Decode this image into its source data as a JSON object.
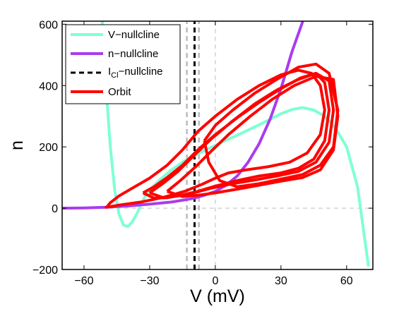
{
  "chart_data": {
    "type": "line",
    "title": "",
    "xlabel": "V (mV)",
    "ylabel": "n",
    "xlim": [
      -70,
      72
    ],
    "ylim": [
      -200,
      610
    ],
    "xticks": [
      -60,
      -30,
      0,
      30,
      60
    ],
    "yticks": [
      -200,
      0,
      200,
      400,
      600
    ],
    "xtick_labels": [
      "−60",
      "−30",
      "0",
      "30",
      "60"
    ],
    "ytick_labels": [
      "−200",
      "0",
      "200",
      "400",
      "600"
    ],
    "grid": false,
    "legend": {
      "placement": "top-left",
      "entries": [
        {
          "label": "V−nullcline",
          "color": "#7fffd4",
          "style": "solid"
        },
        {
          "label": "n−nullcline",
          "color": "#a93cf0",
          "style": "solid"
        },
        {
          "label_main": "I",
          "label_sub": "Cl",
          "label_rest": "−nullcline",
          "color": "#000000",
          "style": "dashed"
        },
        {
          "label": "Orbit",
          "color": "#ff0000",
          "style": "solid"
        }
      ]
    },
    "series": [
      {
        "name": "V−nullcline",
        "color": "#7fffd4",
        "x": [
          -52,
          -50,
          -48,
          -46,
          -44,
          -42,
          -40,
          -38,
          -36,
          -34,
          -32,
          -30,
          -25,
          -20,
          -15,
          -10,
          -5,
          0,
          5,
          10,
          15,
          20,
          25,
          30,
          35,
          40,
          45,
          50,
          55,
          60,
          65,
          70
        ],
        "y": [
          650,
          400,
          200,
          60,
          -20,
          -55,
          -60,
          -45,
          -20,
          10,
          40,
          60,
          95,
          125,
          150,
          170,
          188,
          205,
          222,
          238,
          255,
          272,
          290,
          308,
          322,
          328,
          320,
          300,
          260,
          200,
          70,
          -190
        ]
      },
      {
        "name": "n−nullcline",
        "color": "#a93cf0",
        "x": [
          -70,
          -60,
          -50,
          -40,
          -30,
          -20,
          -10,
          -5,
          0,
          5,
          10,
          15,
          20,
          25,
          30,
          35,
          40
        ],
        "y": [
          0,
          1,
          3,
          7,
          13,
          20,
          32,
          42,
          55,
          75,
          105,
          150,
          210,
          290,
          390,
          510,
          610
        ]
      },
      {
        "name": "I_Cl−nullcline",
        "color": "#000000",
        "x": [
          -9.5,
          -9.5
        ],
        "y": [
          -200,
          610
        ]
      },
      {
        "name": "I_Cl−nullcline (lower)",
        "color": "#bbbbbb",
        "x": [
          -13,
          -13
        ],
        "y": [
          -200,
          610
        ]
      },
      {
        "name": "I_Cl−nullcline (upper)",
        "color": "#bbbbbb",
        "x": [
          -7.5,
          -7.5
        ],
        "y": [
          -200,
          610
        ]
      },
      {
        "name": "Orbit",
        "color": "#ff0000",
        "loops": [
          {
            "x": [
              -50,
              -48,
              -44,
              -38,
              -30,
              -22,
              -15,
              -8,
              0,
              10,
              20,
              30,
              38,
              44,
              48,
              50,
              48,
              42,
              34,
              24,
              14,
              6,
              0,
              -6,
              -14,
              -24,
              -34,
              -44,
              -48,
              -50,
              -50
            ],
            "y": [
              0,
              18,
              40,
              65,
              98,
              140,
              190,
              250,
              300,
              355,
              400,
              435,
              450,
              440,
              400,
              320,
              240,
              180,
              150,
              135,
              125,
              115,
              98,
              78,
              55,
              35,
              20,
              10,
              5,
              3,
              0
            ]
          },
          {
            "x": [
              -33,
              -28,
              -22,
              -15,
              -8,
              0,
              10,
              20,
              30,
              39,
              46,
              50,
              52,
              50,
              45,
              38,
              30,
              20,
              10,
              0,
              -8,
              -15,
              -22,
              -28,
              -33
            ],
            "y": [
              50,
              70,
              100,
              140,
              190,
              240,
              295,
              345,
              390,
              425,
              440,
              410,
              320,
              220,
              160,
              130,
              115,
              105,
              90,
              72,
              55,
              43,
              34,
              33,
              50
            ]
          },
          {
            "x": [
              -30,
              -24,
              -17,
              -10,
              -2,
              8,
              18,
              28,
              38,
              46,
              52,
              54,
              52,
              46,
              38,
              28,
              18,
              8,
              -2,
              -10,
              -17,
              -24,
              -30
            ],
            "y": [
              50,
              80,
              120,
              170,
              225,
              285,
              340,
              385,
              420,
              440,
              415,
              320,
              215,
              150,
              120,
              105,
              92,
              80,
              65,
              50,
              40,
              35,
              50
            ]
          },
          {
            "x": [
              -22,
              -16,
              -9,
              -2,
              6,
              16,
              26,
              36,
              46,
              54,
              56,
              54,
              48,
              40,
              30,
              20,
              10,
              0,
              -8,
              -15,
              -22
            ],
            "y": [
              55,
              90,
              135,
              185,
              240,
              300,
              355,
              400,
              430,
              420,
              300,
              190,
              125,
              100,
              88,
              75,
              62,
              50,
              42,
              38,
              55
            ]
          },
          {
            "x": [
              -5,
              0,
              8,
              18,
              28,
              38,
              46,
              52,
              56,
              54,
              48,
              40,
              30,
              20,
              10,
              2,
              -3,
              -5
            ],
            "y": [
              220,
              270,
              320,
              375,
              420,
              460,
              470,
              440,
              320,
              200,
              140,
              110,
              95,
              80,
              70,
              90,
              150,
              220
            ]
          }
        ]
      }
    ]
  }
}
